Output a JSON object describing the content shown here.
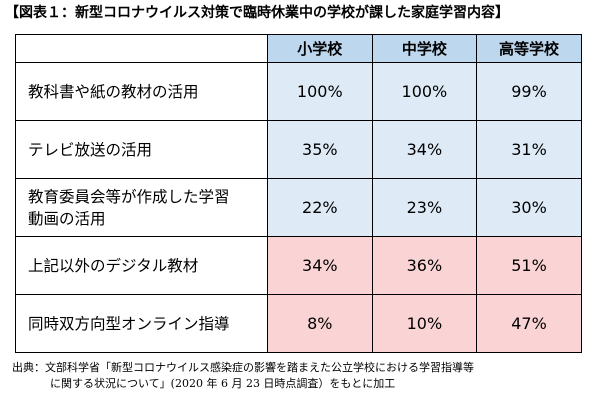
{
  "title": "【図表１：新型コロナウイルス対策で臨時休業中の学校が課した家庭学習内容】",
  "table": {
    "headers": [
      "",
      "小学校",
      "中学校",
      "高等学校"
    ],
    "rows": [
      {
        "label": "教科書や紙の教材の活用",
        "values": [
          "100%",
          "100%",
          "99%"
        ],
        "group": "blue"
      },
      {
        "label": "テレビ放送の活用",
        "values": [
          "35%",
          "34%",
          "31%"
        ],
        "group": "blue"
      },
      {
        "label_line1": "教育委員会等が作成した学習",
        "label_line2": "動画の活用",
        "values": [
          "22%",
          "23%",
          "30%"
        ],
        "group": "blue"
      },
      {
        "label": "上記以外のデジタル教材",
        "values": [
          "34%",
          "36%",
          "51%"
        ],
        "group": "pink"
      },
      {
        "label": "同時双方向型オンライン指導",
        "values": [
          "8%",
          "10%",
          "47%"
        ],
        "group": "pink"
      }
    ]
  },
  "source": {
    "line1": "出典：文部科学省「新型コロナウイルス感染症の影響を踏まえた公立学校における学習指導等",
    "line2": "に関する状況について」(2020 年 6 月 23 日時点調査）をもとに加工"
  },
  "colors": {
    "header_bg": "#bdd7ee",
    "blue_cell": "#deebf7",
    "pink_cell": "#fad4d4"
  }
}
